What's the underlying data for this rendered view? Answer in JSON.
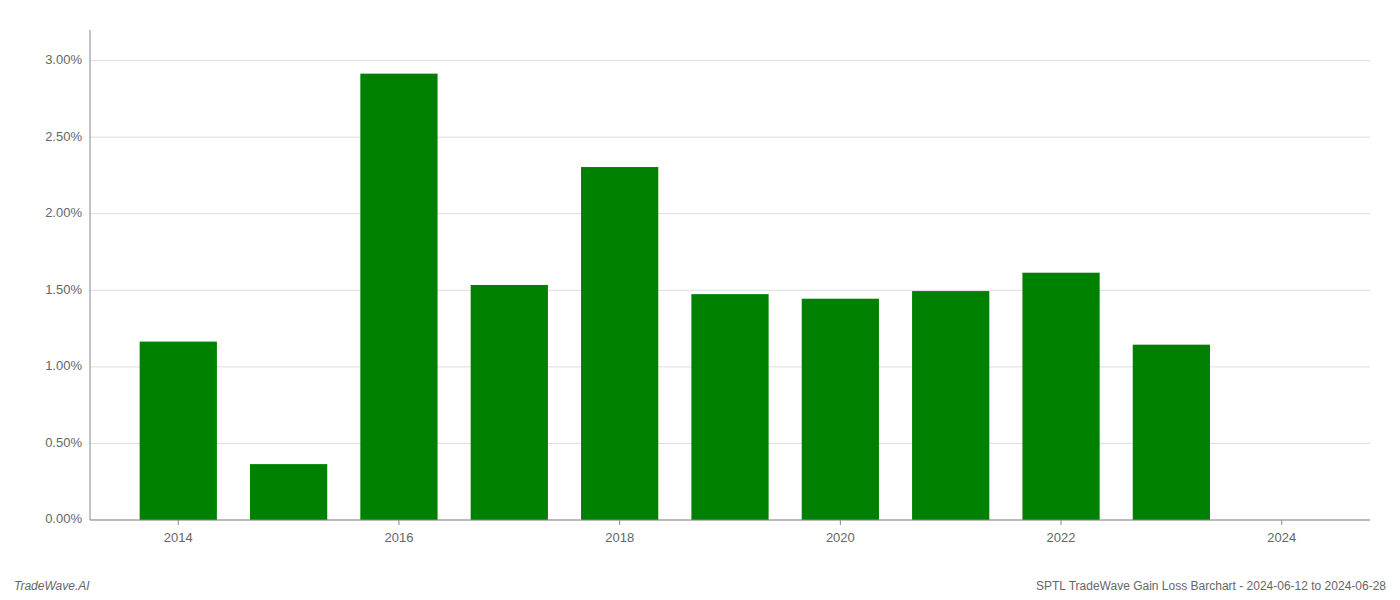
{
  "chart_data": {
    "type": "bar",
    "title": "SPTL TradeWave Gain Loss Barchart - 2024-06-12 to 2024-06-28",
    "annotations": [
      "TradeWave.AI"
    ],
    "x": [
      2014,
      2015,
      2016,
      2017,
      2018,
      2019,
      2020,
      2021,
      2022,
      2023
    ],
    "values": [
      0.01165,
      0.00365,
      0.02915,
      0.01535,
      0.02305,
      0.01475,
      0.01445,
      0.01495,
      0.01615,
      0.01145
    ],
    "color": "#008000",
    "xlim": [
      2013.2,
      2024.8
    ],
    "xticks": [
      2014,
      2016,
      2018,
      2020,
      2022,
      2024
    ],
    "ylim": [
      0,
      0.032
    ],
    "yticks": [
      {
        "value": 0.0,
        "label": "0.00%"
      },
      {
        "value": 0.005,
        "label": "0.50%"
      },
      {
        "value": 0.01,
        "label": "1.00%"
      },
      {
        "value": 0.015,
        "label": "1.50%"
      },
      {
        "value": 0.02,
        "label": "2.00%"
      },
      {
        "value": 0.025,
        "label": "2.50%"
      },
      {
        "value": 0.03,
        "label": "3.00%"
      }
    ],
    "grid": true
  }
}
